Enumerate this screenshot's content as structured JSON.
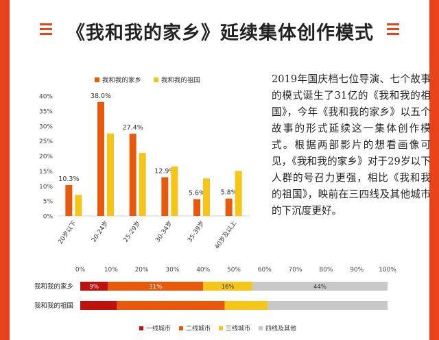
{
  "title": "《我和我的家乡》延续集体创作模式",
  "paragraph": "2019年国庆档七位导演、七个故事的模式诞生了31亿的《我和我的祖国》，今年《我和我的家乡》以五个故事的形式延续这一集体创作模式。根据两部影片的想看画像可见，《我和我的家乡》对于29岁以下人群的号召力更强，相比《我和我的祖国》，映前在三四线及其他城市的下沉度更好。",
  "colors": {
    "hometown": "#e8590c",
    "motherland": "#f5c518",
    "tier1": "#c0120c",
    "tier2": "#e8590c",
    "tier3": "#f5c518",
    "tier4": "#c8c8c8",
    "frame": "#e8431b"
  },
  "chart_data": [
    {
      "type": "bar",
      "categories": [
        "20岁以下",
        "20-24岁",
        "25-29岁",
        "30-34岁",
        "35-39岁",
        "40岁及以上"
      ],
      "series": [
        {
          "name": "我和我的家乡",
          "values": [
            10.3,
            38.0,
            27.4,
            12.9,
            5.6,
            5.8
          ],
          "labels": [
            "10.3%",
            "38.0%",
            "27.4%",
            "12.9%",
            "5.6%",
            "5.8%"
          ]
        },
        {
          "name": "我和我的祖国",
          "values": [
            7.0,
            27.5,
            21.0,
            16.5,
            12.5,
            15.0
          ]
        }
      ],
      "yticks": [
        "0%",
        "5%",
        "10%",
        "15%",
        "20%",
        "25%",
        "30%",
        "35%",
        "40%"
      ],
      "ylim": [
        0,
        40
      ],
      "legend": "top"
    },
    {
      "type": "bar",
      "orientation": "horizontal-stacked",
      "rows": [
        "我和我的家乡",
        "我和我的祖国"
      ],
      "series": [
        {
          "name": "一线城市",
          "values": [
            9,
            12
          ],
          "labels": [
            "9%",
            ""
          ]
        },
        {
          "name": "二线城市",
          "values": [
            31,
            35
          ],
          "labels": [
            "31%",
            ""
          ]
        },
        {
          "name": "三线城市",
          "values": [
            16,
            14
          ],
          "labels": [
            "16%",
            ""
          ]
        },
        {
          "name": "四线及其他",
          "values": [
            44,
            39
          ],
          "labels": [
            "44%",
            ""
          ]
        }
      ],
      "xticks": [
        "0%",
        "10%",
        "20%",
        "30%",
        "40%",
        "50%",
        "60%",
        "70%",
        "80%",
        "90%",
        "100%"
      ],
      "xlim": [
        0,
        100
      ],
      "legend": "bottom"
    }
  ]
}
